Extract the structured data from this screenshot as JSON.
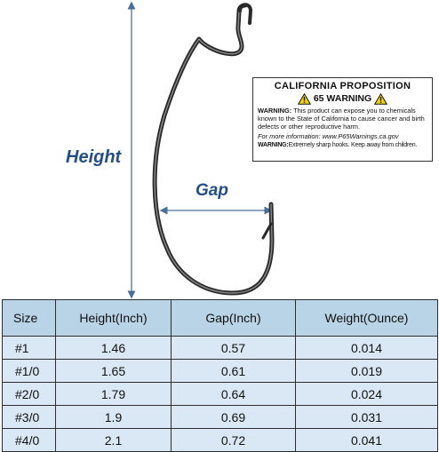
{
  "labels": {
    "height": "Height",
    "gap": "Gap"
  },
  "warning": {
    "title": "CALIFORNIA PROPOSITION",
    "subtitle": "65 WARNING",
    "body_bold": "WARNING:",
    "body": "This product can expose you to chemicals known to the State of California to cause cancer and birth defects or other reproductive harm.",
    "info": "For more information: www.P65Warnings.ca.gov",
    "hooks_bold": "WARNING:",
    "hooks": "Extremely sharp hooks. Keep away from children."
  },
  "table": {
    "headers": [
      "Size",
      "Height(Inch)",
      "Gap(Inch)",
      "Weight(Ounce)"
    ],
    "rows": [
      [
        "#1",
        "1.46",
        "0.57",
        "0.014"
      ],
      [
        "#1/0",
        "1.65",
        "0.61",
        "0.019"
      ],
      [
        "#2/0",
        "1.79",
        "0.64",
        "0.024"
      ],
      [
        "#3/0",
        "1.9",
        "0.69",
        "0.031"
      ],
      [
        "#4/0",
        "2.1",
        "0.72",
        "0.041"
      ]
    ]
  },
  "colors": {
    "accent": "#244f86",
    "header_bg": "#b9d3e7",
    "cell_bg": "#d9e8f4",
    "warning_yellow": "#f5d400"
  }
}
